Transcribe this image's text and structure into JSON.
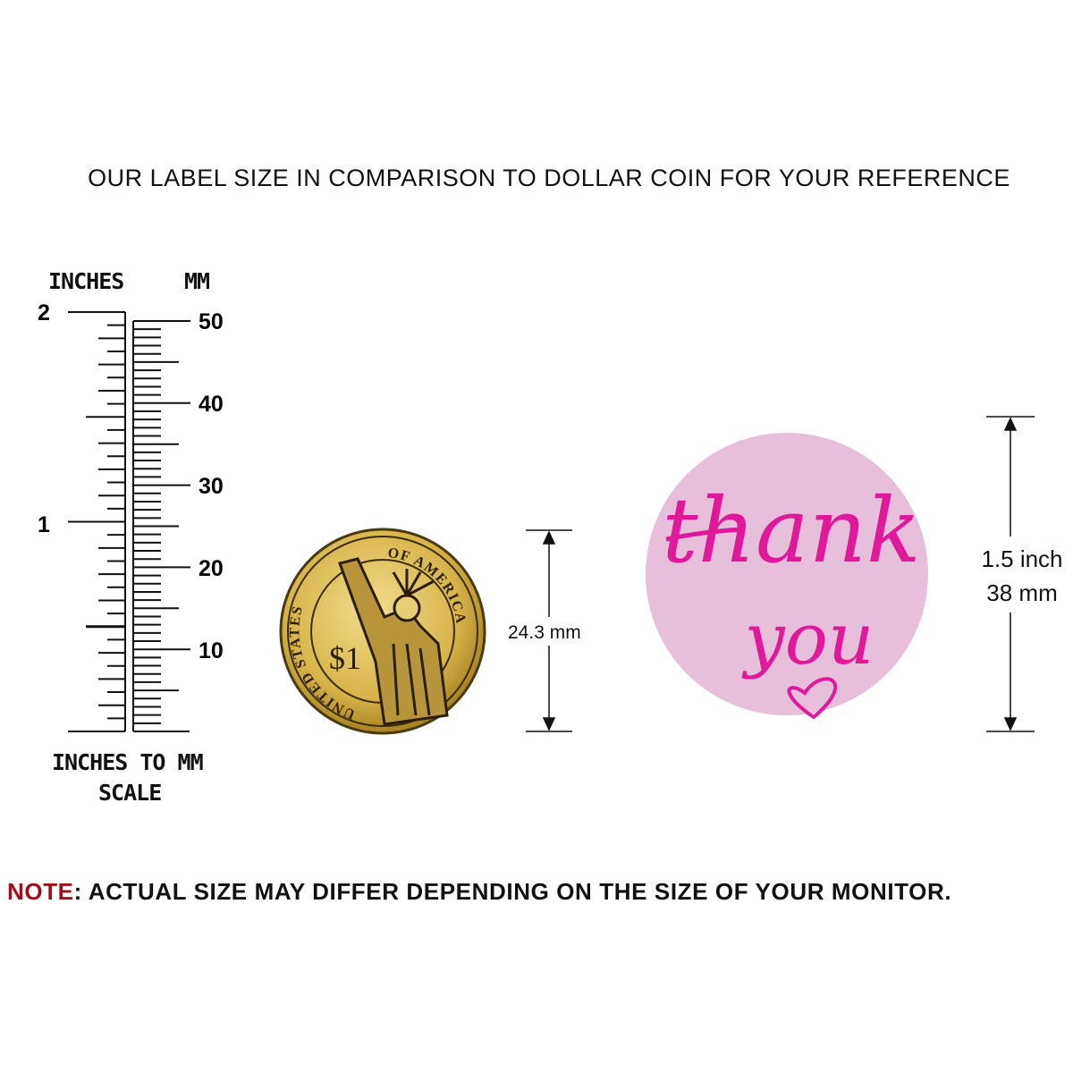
{
  "title": "OUR LABEL SIZE IN COMPARISON TO DOLLAR COIN FOR YOUR REFERENCE",
  "ruler": {
    "inches_label": "INCHES",
    "mm_label": "MM",
    "inch_ticks": [
      "2",
      "1"
    ],
    "mm_ticks": [
      "50",
      "40",
      "30",
      "20",
      "10"
    ],
    "caption_line1": "INCHES TO MM",
    "caption_line2": "SCALE"
  },
  "coin": {
    "legend_top": "OF AMERICA",
    "legend_left": "UNITED STATES",
    "denomination": "$1",
    "dimension": "24.3 mm",
    "color": "#d8b44a"
  },
  "sticker": {
    "line1": "thank",
    "line2": "you",
    "icon": "heart-icon",
    "dimension_in": "1.5 inch",
    "dimension_mm": "38 mm",
    "background": "#e7bfdb",
    "foil": "#e0189a"
  },
  "note": {
    "prefix": "NOTE",
    "text": ": ACTUAL SIZE MAY DIFFER DEPENDING ON THE SIZE OF YOUR MONITOR.",
    "prefix_color": "#a0101c"
  }
}
